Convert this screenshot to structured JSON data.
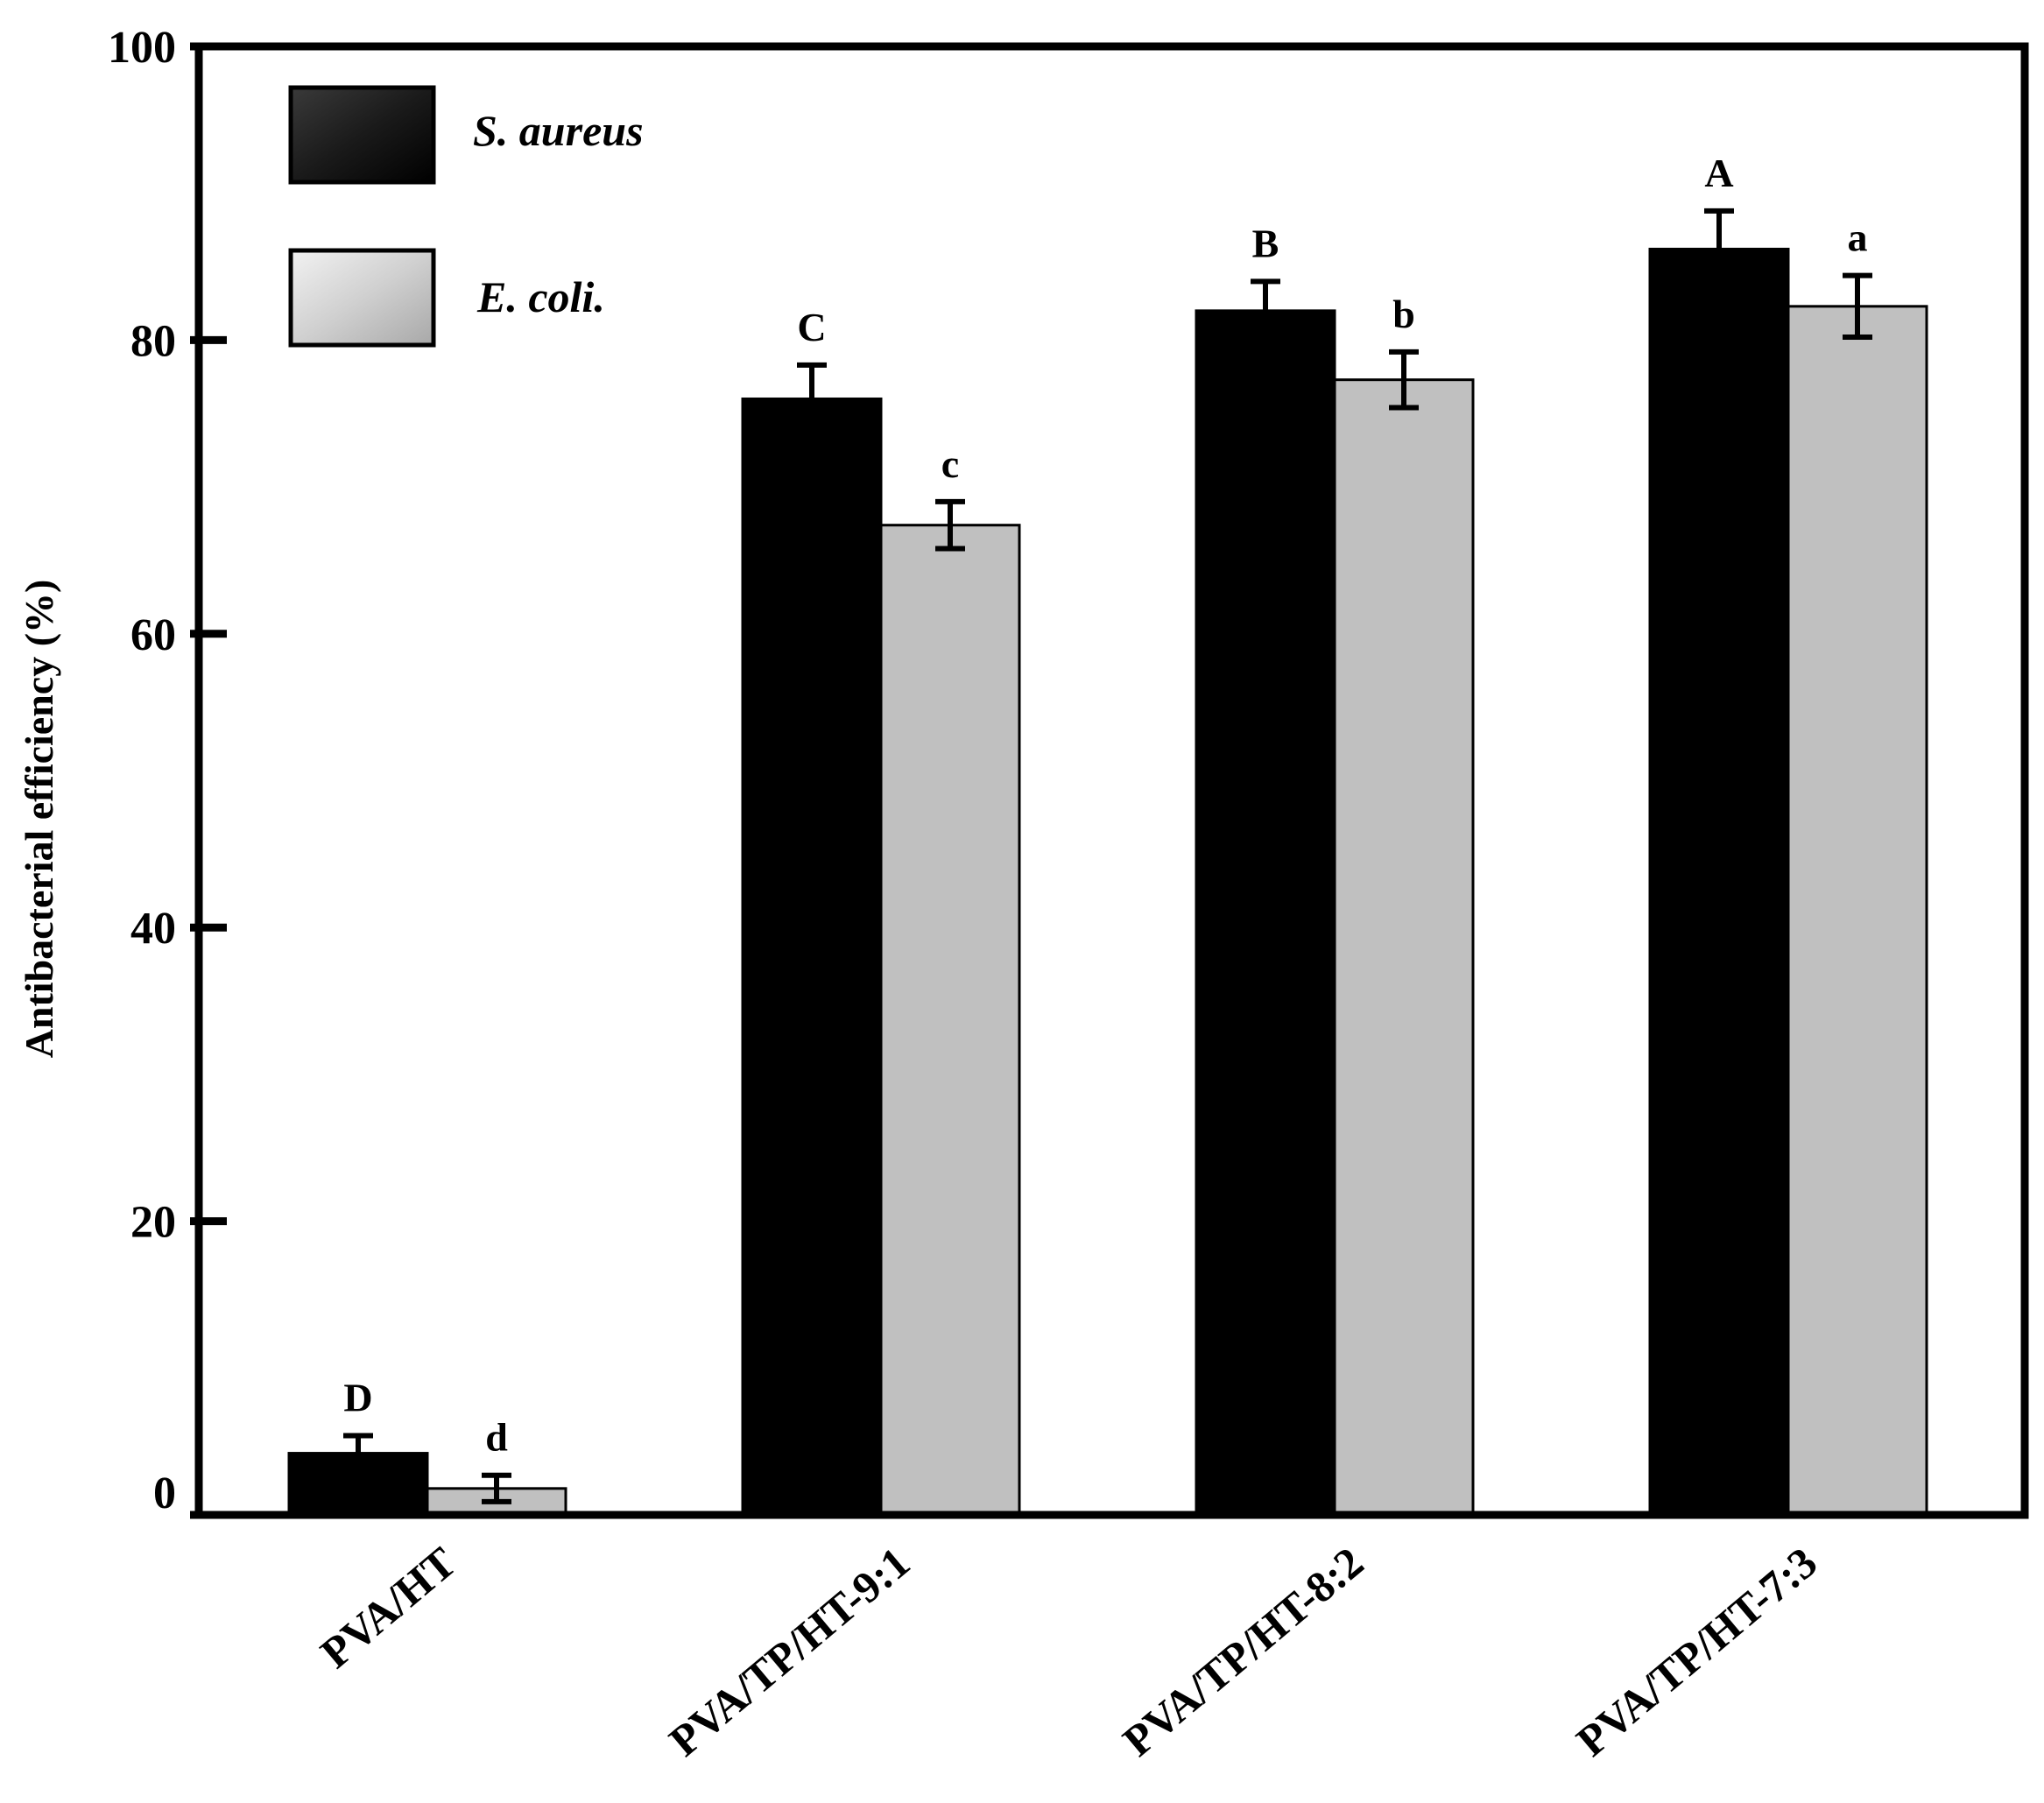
{
  "chart_data": {
    "type": "bar",
    "title": "",
    "xlabel": "",
    "ylabel": "Antibacterial efficiency (%)",
    "ylim": [
      0,
      100
    ],
    "yticks": [
      0,
      20,
      40,
      60,
      80,
      100
    ],
    "grid": false,
    "legend_position": "top-left",
    "categories": [
      "PVA/HT",
      "PVA/TP/HT-9:1",
      "PVA/TP/HT-8:2",
      "PVA/TP/HT-7:3"
    ],
    "series": [
      {
        "name": "S. aureus",
        "color": "#000000",
        "values": [
          4.2,
          76.0,
          82.0,
          86.2
        ],
        "errors": [
          1.2,
          2.3,
          2.0,
          2.6
        ],
        "significance": [
          "D",
          "C",
          "B",
          "A"
        ]
      },
      {
        "name": "E. coli.",
        "color": "#c0c0c0",
        "values": [
          1.8,
          67.4,
          77.3,
          82.3
        ],
        "errors": [
          0.9,
          1.6,
          1.9,
          2.1
        ],
        "significance": [
          "d",
          "c",
          "b",
          "a"
        ]
      }
    ]
  }
}
